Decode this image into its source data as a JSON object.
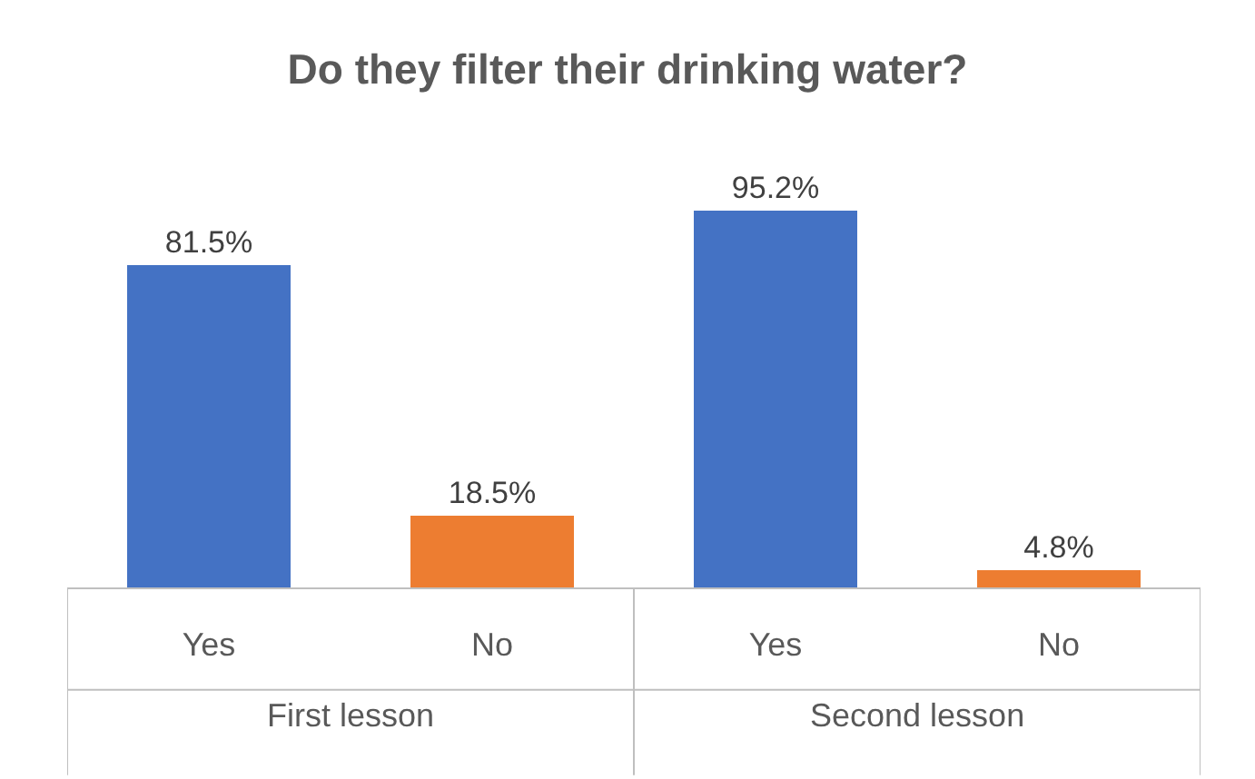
{
  "chart_data": {
    "type": "bar",
    "title": "Do they filter their drinking water?",
    "categories": [
      "Yes",
      "No",
      "Yes",
      "No"
    ],
    "values": [
      81.5,
      18.5,
      95.2,
      4.8
    ],
    "colors": [
      "#4472c4",
      "#ed7d31",
      "#4472c4",
      "#ed7d31"
    ],
    "value_labels": [
      "81.5%",
      "18.5%",
      "95.2%",
      "4.8%"
    ],
    "annotations": [
      "First lesson",
      "Second lesson"
    ],
    "legend": false
  }
}
